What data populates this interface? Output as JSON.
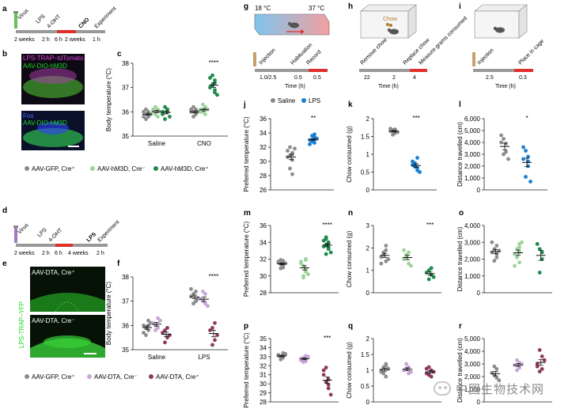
{
  "colors": {
    "grey": "#8c8c8c",
    "light_green": "#9dd49a",
    "dark_green": "#1f8a4c",
    "light_purple": "#c8a6d6",
    "dark_purple": "#8c3a5e",
    "blue": "#1a7fd1",
    "red": "#e0302a",
    "magenta": "#e040e0",
    "fos_blue": "#3040ff",
    "micro_green": "#1bd61b"
  },
  "icons": {
    "mouse": "mouse-icon",
    "syringe": "syringe-icon",
    "cage": "cage-icon",
    "chow": "chow-pellet-icon",
    "scale_bar": "scale-bar"
  },
  "panels": {
    "a": {
      "letter": "a",
      "labels": [
        "Virus",
        "LPS",
        "4-OHT",
        "CNO",
        "Experiment"
      ],
      "times": [
        "2 weeks",
        "2 h",
        "6 h",
        "2 weeks",
        "1 h"
      ]
    },
    "b": {
      "letter": "b",
      "top_line1": "LPS-TRAP–tdTomato",
      "top_line2": "AAV-DIO-hM3D",
      "bottom_line1": "Fos",
      "bottom_line2": "AAV-DIO-hM3D"
    },
    "c": {
      "letter": "c"
    },
    "legend1": [
      "AAV-GFP, Cre⁺",
      "AAV-hM3D, Cre⁻",
      "AAV-hM3D, Cre⁺"
    ],
    "d": {
      "letter": "d",
      "labels": [
        "Virus",
        "LPS",
        "4-OHT",
        "LPS",
        "Experiment"
      ],
      "times": [
        "2 weeks",
        "2 h",
        "6 h",
        "4 weeks",
        "2 h"
      ]
    },
    "e": {
      "letter": "e",
      "side": "LPS-TRAP–YFP",
      "top": "AAV-DTA, Cre⁺",
      "bottom": "AAV-DTA, Cre⁻"
    },
    "f": {
      "letter": "f"
    },
    "legend2": [
      "AAV-GFP, Cre⁺",
      "AAV-DTA, Cre⁻",
      "AAV-DTA, Cre⁺"
    ],
    "g": {
      "letter": "g",
      "temp_left": "18 °C",
      "temp_right": "37 °C",
      "steps": [
        "Injection",
        "Habituation",
        "Record"
      ],
      "ticks": [
        "1.0/2.5",
        "0.5",
        "0.5"
      ],
      "xlabel": "Time (h)"
    },
    "h": {
      "letter": "h",
      "chow": "Chow",
      "steps": [
        "Remove chow",
        "Replace chow",
        "Measure grams consumed"
      ],
      "ticks": [
        "22",
        "2",
        "4"
      ],
      "xlabel": "Time (h)"
    },
    "i": {
      "letter": "i",
      "steps": [
        "Injection",
        "Place in cage"
      ],
      "ticks": [
        "2.5",
        "0.3"
      ],
      "xlabel": "Time (h)"
    },
    "legend3": [
      "Saline",
      "LPS"
    ],
    "j": {
      "letter": "j"
    },
    "k": {
      "letter": "k"
    },
    "l": {
      "letter": "l"
    },
    "m": {
      "letter": "m"
    },
    "n": {
      "letter": "n"
    },
    "o": {
      "letter": "o"
    },
    "p": {
      "letter": "p"
    },
    "q": {
      "letter": "q"
    },
    "r": {
      "letter": "r"
    }
  },
  "watermark": "中国生物技术网",
  "chart_data": [
    {
      "id": "c",
      "type": "scatter",
      "ylabel": "Body temperature (°C)",
      "ylim": [
        35,
        38
      ],
      "yticks": [
        35,
        36,
        37,
        38
      ],
      "categories": [
        "Saline",
        "CNO"
      ],
      "series": [
        {
          "name": "AAV-GFP, Cre⁺",
          "color": "#8c8c8c",
          "values": [
            [
              35.8,
              35.9,
              36.0,
              35.7,
              36.1,
              35.9,
              36.0,
              35.8
            ],
            [
              36.0,
              35.9,
              36.1,
              36.2,
              35.8,
              36.0,
              36.1,
              35.9
            ]
          ]
        },
        {
          "name": "AAV-hM3D, Cre⁻",
          "color": "#9dd49a",
          "values": [
            [
              36.0,
              36.1,
              35.8,
              36.2,
              35.9,
              36.0,
              36.1
            ],
            [
              36.1,
              35.9,
              36.2,
              36.0,
              36.3,
              36.1,
              36.0
            ]
          ]
        },
        {
          "name": "AAV-hM3D, Cre⁺",
          "color": "#1f8a4c",
          "values": [
            [
              35.9,
              36.0,
              36.1,
              35.7,
              36.2,
              35.8,
              36.0,
              36.1
            ],
            [
              37.0,
              37.3,
              36.8,
              37.5,
              37.1,
              36.7,
              37.4,
              37.2,
              36.9
            ]
          ]
        }
      ],
      "annotations": [
        "****"
      ]
    },
    {
      "id": "f",
      "type": "scatter",
      "ylabel": "Body temperature (°C)",
      "ylim": [
        35,
        38
      ],
      "yticks": [
        35,
        36,
        37,
        38
      ],
      "categories": [
        "Saline",
        "LPS"
      ],
      "series": [
        {
          "name": "AAV-GFP, Cre⁺",
          "color": "#8c8c8c",
          "values": [
            [
              36.0,
              35.8,
              36.2,
              35.6,
              35.9,
              36.1,
              35.7,
              36.0
            ],
            [
              37.2,
              37.0,
              37.4,
              36.9,
              37.3,
              37.1,
              37.5,
              37.0
            ]
          ]
        },
        {
          "name": "AAV-DTA, Cre⁻",
          "color": "#c8a6d6",
          "values": [
            [
              36.1,
              35.9,
              36.3,
              36.0,
              35.8,
              36.2
            ],
            [
              37.1,
              36.9,
              37.3,
              37.0,
              37.4,
              36.8
            ]
          ]
        },
        {
          "name": "AAV-DTA, Cre⁺",
          "color": "#8c3a5e",
          "values": [
            [
              35.7,
              35.5,
              35.9,
              35.3,
              35.8,
              35.6
            ],
            [
              35.8,
              35.4,
              36.1,
              35.2,
              35.9,
              35.6
            ]
          ]
        }
      ],
      "annotations": [
        "****"
      ]
    },
    {
      "id": "j",
      "type": "scatter",
      "ylabel": "Preferred temperature (°C)",
      "ylim": [
        26,
        36
      ],
      "yticks": [
        26,
        28,
        30,
        32,
        34,
        36
      ],
      "categories": [
        "Saline",
        "LPS"
      ],
      "series": [
        {
          "name": "Saline",
          "color": "#8c8c8c",
          "values": [
            [
              31.5,
              30.2,
              31.0,
              32.0,
              29.0,
              31.8,
              30.6,
              28.2,
              31.2,
              30.8
            ]
          ]
        },
        {
          "name": "LPS",
          "color": "#1a7fd1",
          "values": [
            [
              33.0,
              32.6,
              33.4,
              32.8,
              33.6,
              33.2,
              32.4,
              33.8,
              33.1,
              32.9
            ]
          ]
        }
      ],
      "annotations": [
        "**"
      ]
    },
    {
      "id": "k",
      "type": "scatter",
      "ylabel": "Chow consumed (g)",
      "ylim": [
        0,
        2
      ],
      "yticks": [
        0,
        0.5,
        1.0,
        1.5,
        2.0
      ],
      "categories": [
        "Saline",
        "LPS"
      ],
      "series": [
        {
          "name": "Saline",
          "color": "#8c8c8c",
          "values": [
            [
              1.65,
              1.6,
              1.7,
              1.55,
              1.68,
              1.62,
              1.72
            ]
          ]
        },
        {
          "name": "LPS",
          "color": "#1a7fd1",
          "values": [
            [
              0.7,
              0.55,
              0.9,
              0.65,
              0.75,
              0.5,
              0.8,
              0.62
            ]
          ]
        }
      ],
      "annotations": [
        "***"
      ]
    },
    {
      "id": "l",
      "type": "scatter",
      "ylabel": "Distance travelled (cm)",
      "ylim": [
        0,
        6000
      ],
      "yticks": [
        0,
        1000,
        2000,
        3000,
        4000,
        5000,
        6000
      ],
      "categories": [
        "Saline",
        "LPS"
      ],
      "series": [
        {
          "name": "Saline",
          "color": "#8c8c8c",
          "values": [
            [
              4600,
              3200,
              3900,
              4300,
              3000,
              2600,
              4000
            ]
          ]
        },
        {
          "name": "LPS",
          "color": "#1a7fd1",
          "values": [
            [
              3600,
              2800,
              2000,
              1100,
              3300,
              700,
              2600,
              2400
            ]
          ]
        }
      ],
      "annotations": [
        "*"
      ]
    },
    {
      "id": "m",
      "type": "scatter",
      "ylabel": "Preferred temperature (°C)",
      "ylim": [
        28,
        36
      ],
      "yticks": [
        28,
        30,
        32,
        34,
        36
      ],
      "categories": [
        "AAV-GFP, Cre⁺",
        "AAV-hM3D, Cre⁻",
        "AAV-hM3D, Cre⁺"
      ],
      "series": [
        {
          "name": "AAV-GFP, Cre⁺",
          "color": "#8c8c8c",
          "values": [
            [
              31.6,
              31.2,
              31.8,
              31.4,
              30.9,
              31.5,
              31.7,
              31.0,
              31.3,
              31.9,
              31.5
            ]
          ]
        },
        {
          "name": "AAV-hM3D, Cre⁻",
          "color": "#9dd49a",
          "values": [
            [
              31.5,
              30.8,
              32.0,
              29.8,
              31.2,
              30.2,
              31.7,
              30.5,
              31.9,
              30.0
            ]
          ]
        },
        {
          "name": "AAV-hM3D, Cre⁺",
          "color": "#1f8a4c",
          "values": [
            [
              33.5,
              34.0,
              33.2,
              34.4,
              33.7,
              32.8,
              34.2,
              33.9,
              33.4,
              34.6,
              32.6
            ]
          ]
        }
      ],
      "annotations": [
        "****"
      ]
    },
    {
      "id": "n",
      "type": "scatter",
      "ylabel": "Chow consumed (g)",
      "ylim": [
        0,
        3
      ],
      "yticks": [
        0,
        1,
        2,
        3
      ],
      "categories": [
        "AAV-GFP, Cre⁺",
        "AAV-hM3D, Cre⁻",
        "AAV-hM3D, Cre⁺"
      ],
      "series": [
        {
          "name": "AAV-GFP, Cre⁺",
          "color": "#8c8c8c",
          "values": [
            [
              1.6,
              1.9,
              1.4,
              1.8,
              1.7,
              1.5,
              1.3,
              2.1
            ]
          ]
        },
        {
          "name": "AAV-hM3D, Cre⁻",
          "color": "#9dd49a",
          "values": [
            [
              1.5,
              1.8,
              1.3,
              1.7,
              1.6,
              1.2,
              1.9
            ]
          ]
        },
        {
          "name": "AAV-hM3D, Cre⁺",
          "color": "#1f8a4c",
          "values": [
            [
              0.9,
              1.1,
              0.8,
              0.6,
              1.0,
              0.7
            ]
          ]
        }
      ],
      "annotations": [
        "***"
      ]
    },
    {
      "id": "o",
      "type": "scatter",
      "ylabel": "Distance travelled (cm)",
      "ylim": [
        0,
        4000
      ],
      "yticks": [
        0,
        1000,
        2000,
        3000,
        4000
      ],
      "categories": [
        "AAV-GFP, Cre⁺",
        "AAV-hM3D, Cre⁻",
        "AAV-hM3D, Cre⁺"
      ],
      "series": [
        {
          "name": "AAV-GFP, Cre⁺",
          "color": "#8c8c8c",
          "values": [
            [
              2400,
              2800,
              2100,
              2600,
              1900,
              2500,
              3000,
              2300
            ]
          ]
        },
        {
          "name": "AAV-hM3D, Cre⁻",
          "color": "#9dd49a",
          "values": [
            [
              2300,
              2900,
              1800,
              2600,
              2100,
              3000,
              1600,
              2400,
              2700
            ]
          ]
        },
        {
          "name": "AAV-hM3D, Cre⁺",
          "color": "#1f8a4c",
          "values": [
            [
              2900,
              2400,
              2000,
              1200,
              2600
            ]
          ]
        }
      ],
      "annotations": []
    },
    {
      "id": "p",
      "type": "scatter",
      "ylabel": "Preferred temperature (°C)",
      "ylim": [
        28,
        35
      ],
      "yticks": [
        28,
        29,
        30,
        31,
        32,
        33,
        34,
        35
      ],
      "categories": [
        "AAV-GFP, Cre⁺",
        "AAV-DTA, Cre⁻",
        "AAV-DTA, Cre⁺"
      ],
      "series": [
        {
          "name": "AAV-GFP, Cre⁺",
          "color": "#8c8c8c",
          "values": [
            [
              33.2,
              32.9,
              33.4,
              33.0,
              32.7,
              33.3,
              33.1
            ]
          ]
        },
        {
          "name": "AAV-DTA, Cre⁻",
          "color": "#c8a6d6",
          "values": [
            [
              32.8,
              33.1,
              32.5,
              32.9,
              32.4,
              33.0,
              32.6
            ]
          ]
        },
        {
          "name": "AAV-DTA, Cre⁺",
          "color": "#8c3a5e",
          "values": [
            [
              31.5,
              30.5,
              29.5,
              31.8,
              30.2,
              28.8,
              31.0,
              29.9
            ]
          ]
        }
      ],
      "annotations": [
        "***"
      ]
    },
    {
      "id": "q",
      "type": "scatter",
      "ylabel": "Chow consumed (g)",
      "ylim": [
        0,
        2
      ],
      "yticks": [
        0,
        0.5,
        1.0,
        1.5,
        2.0
      ],
      "categories": [
        "AAV-GFP, Cre⁺",
        "AAV-DTA, Cre⁻",
        "AAV-DTA, Cre⁺"
      ],
      "series": [
        {
          "name": "AAV-GFP, Cre⁺",
          "color": "#8c8c8c",
          "values": [
            [
              1.0,
              1.2,
              0.8,
              1.1,
              0.9,
              1.05,
              0.95,
              1.15
            ]
          ]
        },
        {
          "name": "AAV-DTA, Cre⁻",
          "color": "#c8a6d6",
          "values": [
            [
              1.0,
              1.1,
              0.9,
              1.05,
              1.2,
              0.95
            ]
          ]
        },
        {
          "name": "AAV-DTA, Cre⁺",
          "color": "#8c3a5e",
          "values": [
            [
              0.9,
              1.0,
              0.8,
              1.1,
              0.85,
              0.95,
              1.05
            ]
          ]
        }
      ],
      "annotations": []
    },
    {
      "id": "r",
      "type": "scatter",
      "ylabel": "Distance travelled (cm)",
      "ylim": [
        0,
        5000
      ],
      "yticks": [
        0,
        1000,
        2000,
        3000,
        4000,
        5000
      ],
      "categories": [
        "AAV-GFP, Cre⁺",
        "AAV-DTA, Cre⁻",
        "AAV-DTA, Cre⁺"
      ],
      "series": [
        {
          "name": "AAV-GFP, Cre⁺",
          "color": "#8c8c8c",
          "values": [
            [
              2300,
              1900,
              2600,
              2100,
              2800,
              1700
            ]
          ]
        },
        {
          "name": "AAV-DTA, Cre⁻",
          "color": "#c8a6d6",
          "values": [
            [
              2900,
              3100,
              2700,
              3300,
              2500,
              3000
            ]
          ]
        },
        {
          "name": "AAV-DTA, Cre⁺",
          "color": "#8c3a5e",
          "values": [
            [
              3000,
              3600,
              2600,
              2400,
              4100,
              3300,
              2800
            ]
          ]
        }
      ],
      "annotations": []
    }
  ]
}
